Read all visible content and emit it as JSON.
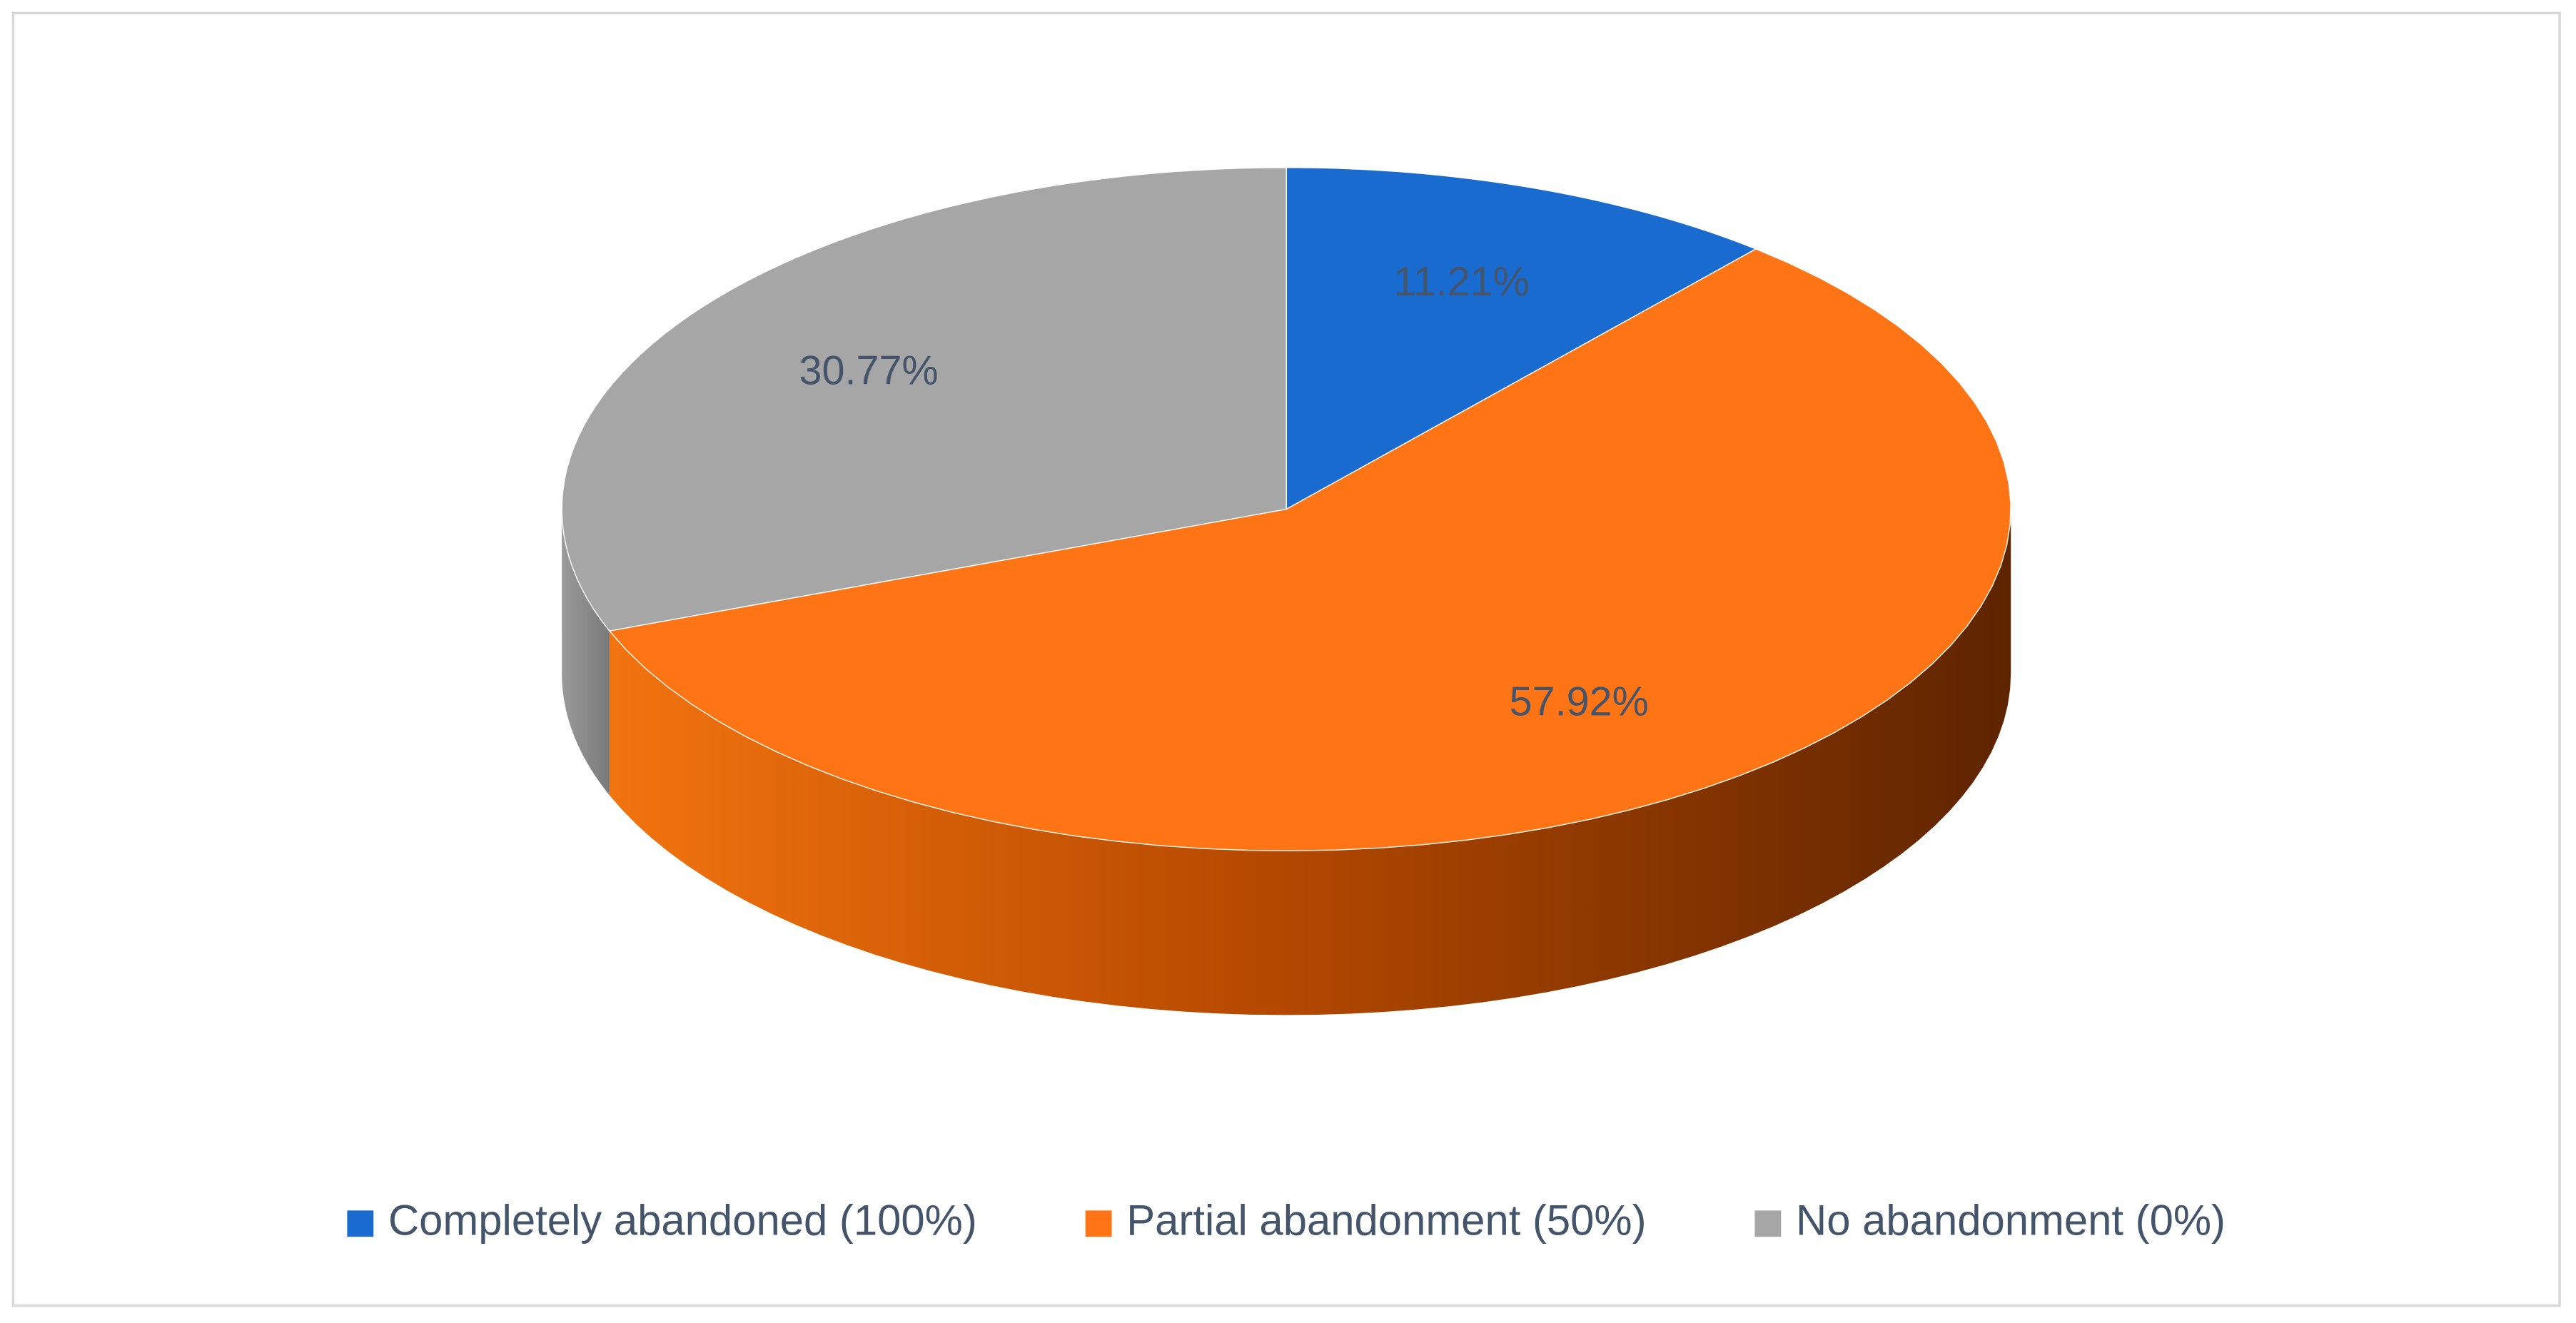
{
  "chart_data": {
    "type": "pie3d",
    "categories": [
      "Completely abandoned (100%)",
      "Partial abandonment (50%)",
      "No abandonment (0%)"
    ],
    "values": [
      11.21,
      57.92,
      30.77
    ],
    "value_labels": [
      "11.21%",
      "57.92%",
      "30.77%"
    ],
    "colors": [
      "#1a6bd0",
      "#ff7414",
      "#a6a6a6"
    ],
    "legend": "bottom"
  }
}
